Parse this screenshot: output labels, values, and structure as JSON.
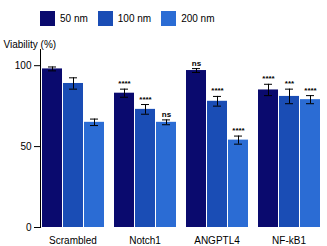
{
  "chart_data": {
    "type": "bar",
    "categories": [
      "Scrambled",
      "Notch1",
      "ANGPTL4",
      "NF-kB1"
    ],
    "series": [
      {
        "name": "50 nm",
        "color": "#0A0A6E",
        "values": [
          98,
          83,
          97,
          85
        ],
        "errors": [
          1.2,
          2.5,
          1.2,
          3.5
        ],
        "annotations": [
          null,
          "****",
          "ns",
          "****"
        ]
      },
      {
        "name": "100 nm",
        "color": "#1A4DB5",
        "values": [
          89,
          73,
          78,
          81
        ],
        "errors": [
          3.5,
          3.0,
          3.0,
          4.5
        ],
        "annotations": [
          null,
          "****",
          "****",
          "***"
        ]
      },
      {
        "name": "200 nm",
        "color": "#2B6CD4",
        "values": [
          65,
          65,
          54,
          79
        ],
        "errors": [
          2.0,
          1.5,
          2.5,
          2.5
        ],
        "annotations": [
          null,
          "ns",
          "****",
          "****"
        ]
      }
    ],
    "ylabel": "Viability (%)",
    "ylim": [
      0,
      110
    ],
    "yticks": [
      0,
      50,
      100
    ],
    "grid": false,
    "legend": "top"
  }
}
